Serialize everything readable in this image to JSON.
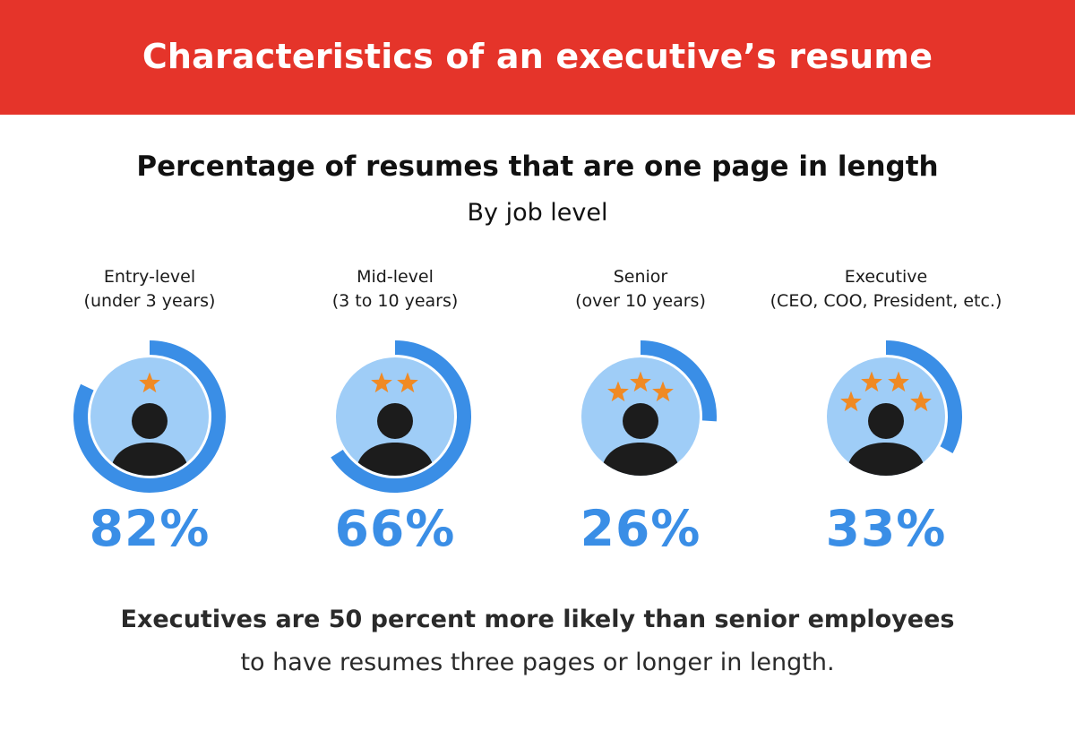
{
  "banner": {
    "title": "Characteristics of an executive’s resume"
  },
  "chart_data": {
    "type": "radial-progress",
    "title": "Percentage of resumes that are one page in length",
    "subtitle": "By job level",
    "categories": [
      {
        "line1": "Entry-level",
        "line2": "(under 3 years)",
        "value": 82,
        "label": "82%",
        "stars": 1
      },
      {
        "line1": "Mid-level",
        "line2": "(3 to 10 years)",
        "value": 66,
        "label": "66%",
        "stars": 2
      },
      {
        "line1": "Senior",
        "line2": "(over 10 years)",
        "value": 26,
        "label": "26%",
        "stars": 3
      },
      {
        "line1": "Executive",
        "line2": "(CEO, COO, President, etc.)",
        "value": 33,
        "label": "33%",
        "stars": 4
      }
    ],
    "unit": "%",
    "range": [
      0,
      100
    ]
  },
  "footnote": {
    "line1": "Executives are 50 percent more likely than senior employees",
    "line2": "to have resumes three pages or longer in length."
  },
  "colors": {
    "banner": "#e5342a",
    "arc": "#3a8ee6",
    "disc": "#9fcdf7",
    "star": "#f08a24",
    "figure": "#1c1c1c"
  },
  "icons": [
    "person-icon",
    "star-icon"
  ]
}
